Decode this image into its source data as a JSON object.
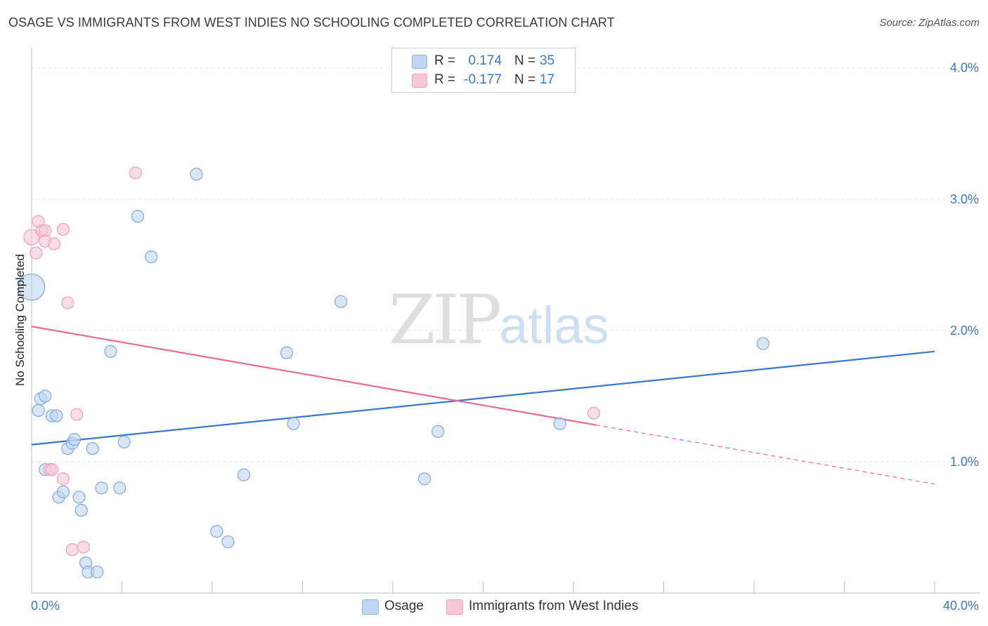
{
  "title": "OSAGE VS IMMIGRANTS FROM WEST INDIES NO SCHOOLING COMPLETED CORRELATION CHART",
  "source": "Source: ZipAtlas.com",
  "watermark": {
    "zip": "ZIP",
    "atlas": "atlas"
  },
  "colors": {
    "blue": "#3a78c8",
    "blue_fill": "#c0d6f4",
    "pink": "#e56b96",
    "pink_fill": "#f9c6d5"
  },
  "legend": {
    "rows": [
      {
        "r_label": "R =",
        "r_value": "0.174",
        "n_label": "N =",
        "n_value": "35"
      },
      {
        "r_label": "R =",
        "r_value": "-0.177",
        "n_label": "N =",
        "n_value": "17"
      }
    ]
  },
  "bottom_legend": [
    "Osage",
    "Immigrants from West Indies"
  ],
  "chart_data": {
    "type": "scatter",
    "title": "OSAGE VS IMMIGRANTS FROM WEST INDIES NO SCHOOLING COMPLETED CORRELATION CHART",
    "xlabel": "",
    "ylabel": "No Schooling Completed",
    "xlim": [
      0,
      40
    ],
    "ylim": [
      0,
      4.1
    ],
    "x_tick_labels": [
      "0.0%",
      "40.0%"
    ],
    "y_ticks": [
      1.0,
      2.0,
      3.0,
      4.0
    ],
    "y_tick_labels": [
      "1.0%",
      "2.0%",
      "3.0%",
      "4.0%"
    ],
    "grid": true,
    "series": [
      {
        "name": "Osage",
        "color": "#3a78c8",
        "points": [
          [
            0.0,
            2.33,
            2.2
          ],
          [
            0.3,
            1.39,
            1
          ],
          [
            0.4,
            1.48,
            1
          ],
          [
            0.6,
            1.5,
            1
          ],
          [
            0.9,
            1.35,
            1
          ],
          [
            1.1,
            1.35,
            1
          ],
          [
            0.6,
            0.94,
            1
          ],
          [
            1.2,
            0.73,
            1
          ],
          [
            1.4,
            0.77,
            1
          ],
          [
            1.6,
            1.1,
            1
          ],
          [
            1.8,
            1.14,
            1
          ],
          [
            1.9,
            1.17,
            1
          ],
          [
            2.1,
            0.73,
            1
          ],
          [
            2.2,
            0.63,
            1
          ],
          [
            2.4,
            0.23,
            1
          ],
          [
            2.5,
            0.16,
            1
          ],
          [
            2.7,
            1.1,
            1
          ],
          [
            2.9,
            0.16,
            1
          ],
          [
            3.1,
            0.8,
            1
          ],
          [
            3.5,
            1.84,
            1
          ],
          [
            3.9,
            0.8,
            1
          ],
          [
            4.1,
            1.15,
            1
          ],
          [
            4.7,
            2.87,
            1
          ],
          [
            5.3,
            2.56,
            1
          ],
          [
            7.3,
            3.19,
            1
          ],
          [
            8.2,
            0.47,
            1
          ],
          [
            8.7,
            0.39,
            1
          ],
          [
            9.4,
            0.9,
            1
          ],
          [
            11.3,
            1.83,
            1
          ],
          [
            11.6,
            1.29,
            1
          ],
          [
            13.7,
            2.22,
            1
          ],
          [
            17.4,
            0.87,
            1
          ],
          [
            18.0,
            1.23,
            1
          ],
          [
            23.4,
            1.29,
            1
          ],
          [
            32.4,
            1.9,
            1
          ]
        ]
      },
      {
        "name": "Immigrants from West Indies",
        "color": "#e56b96",
        "points": [
          [
            0.0,
            2.71,
            1.3
          ],
          [
            0.2,
            2.59,
            1
          ],
          [
            0.3,
            2.83,
            1
          ],
          [
            0.45,
            2.76,
            1
          ],
          [
            0.6,
            2.76,
            1
          ],
          [
            0.6,
            2.68,
            1
          ],
          [
            1.0,
            2.66,
            1
          ],
          [
            1.4,
            2.77,
            1
          ],
          [
            1.6,
            2.21,
            1
          ],
          [
            0.8,
            0.94,
            1
          ],
          [
            0.9,
            0.94,
            1
          ],
          [
            1.4,
            0.87,
            1
          ],
          [
            1.8,
            0.33,
            1
          ],
          [
            2.3,
            0.35,
            1
          ],
          [
            2.0,
            1.36,
            1
          ],
          [
            4.6,
            3.2,
            1
          ],
          [
            24.9,
            1.37,
            1
          ]
        ]
      }
    ],
    "trendlines": [
      {
        "series": "Osage",
        "x": [
          0,
          40
        ],
        "y": [
          1.13,
          1.84
        ],
        "style": "solid"
      },
      {
        "series": "Immigrants from West Indies",
        "x": [
          0,
          25
        ],
        "y": [
          2.03,
          1.28
        ],
        "style": "solid"
      },
      {
        "series": "Immigrants from West Indies",
        "x": [
          25,
          40
        ],
        "y": [
          1.28,
          0.83
        ],
        "style": "dashed"
      }
    ]
  }
}
